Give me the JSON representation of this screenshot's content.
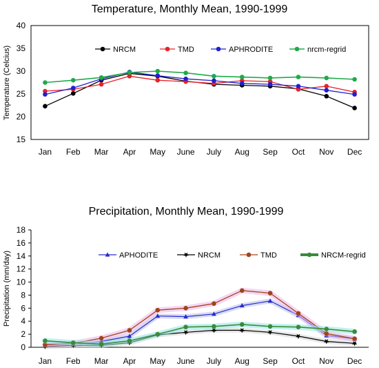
{
  "chart_data": [
    {
      "type": "line",
      "title": "Temperature, Monthly Mean, 1990-1999",
      "xlabel": "",
      "ylabel": "Temperature (Celcius)",
      "ylim": [
        15,
        40
      ],
      "yticks": [
        "15",
        "20",
        "25",
        "30",
        "35",
        "40"
      ],
      "categories": [
        "Jan",
        "Feb",
        "Mar",
        "Apr",
        "May",
        "June",
        "July",
        "Aug",
        "Sep",
        "Oct",
        "Nov",
        "Dec"
      ],
      "grid": false,
      "legend_placement": "top",
      "series": [
        {
          "name": "NRCM",
          "color": "#000000",
          "marker": "circle",
          "values": [
            22.3,
            25.1,
            28.0,
            29.5,
            28.9,
            27.8,
            27.1,
            26.9,
            26.7,
            26.1,
            24.5,
            21.9
          ]
        },
        {
          "name": "TMD",
          "color": "#e8202a",
          "marker": "circle",
          "values": [
            25.6,
            26.0,
            27.1,
            28.9,
            28.0,
            27.7,
            27.3,
            27.9,
            27.7,
            26.0,
            26.7,
            25.4
          ]
        },
        {
          "name": "APHRODITE",
          "color": "#2020d0",
          "marker": "circle",
          "values": [
            24.9,
            26.3,
            28.3,
            29.8,
            29.0,
            28.3,
            27.9,
            27.3,
            27.1,
            26.7,
            25.8,
            24.9
          ]
        },
        {
          "name": "nrcm-regrid",
          "color": "#1faa4a",
          "marker": "circle",
          "values": [
            27.5,
            28.0,
            28.6,
            29.7,
            30.0,
            29.6,
            28.9,
            28.7,
            28.5,
            28.7,
            28.5,
            28.2
          ]
        }
      ]
    },
    {
      "type": "line",
      "title": "Precipitation, Monthly Mean, 1990-1999",
      "xlabel": "",
      "ylabel": "Precipitation (mm/day)",
      "ylim": [
        0,
        18
      ],
      "yticks": [
        "0",
        "2",
        "4",
        "6",
        "8",
        "10",
        "12",
        "14",
        "16",
        "18"
      ],
      "categories": [
        "Jan",
        "Feb",
        "Mar",
        "Apr",
        "May",
        "June",
        "July",
        "Aug",
        "Sep",
        "Oct",
        "Nov",
        "Dec"
      ],
      "grid": false,
      "legend_placement": "middle",
      "series": [
        {
          "name": "APHODITE",
          "color": "#2a2ad0",
          "marker": "triangle",
          "values": [
            0.3,
            0.4,
            0.9,
            1.7,
            4.8,
            4.7,
            5.1,
            6.4,
            7.1,
            4.9,
            1.8,
            1.3
          ]
        },
        {
          "name": "NRCM",
          "color": "#000000",
          "marker": "star",
          "values": [
            0.1,
            0.3,
            0.3,
            0.7,
            1.9,
            2.3,
            2.6,
            2.6,
            2.3,
            1.7,
            0.9,
            0.6
          ]
        },
        {
          "name": "TMD",
          "color": "#a0441a",
          "marker": "circle",
          "values": [
            0.4,
            0.6,
            1.4,
            2.6,
            5.7,
            6.0,
            6.7,
            8.7,
            8.3,
            5.2,
            2.1,
            1.3
          ]
        },
        {
          "name": "NRCM-regrid",
          "color": "#3a8a3a",
          "marker": "circle",
          "values": [
            1.0,
            0.7,
            0.5,
            1.0,
            2.0,
            3.1,
            3.2,
            3.5,
            3.2,
            3.1,
            2.8,
            2.4
          ]
        }
      ]
    }
  ]
}
